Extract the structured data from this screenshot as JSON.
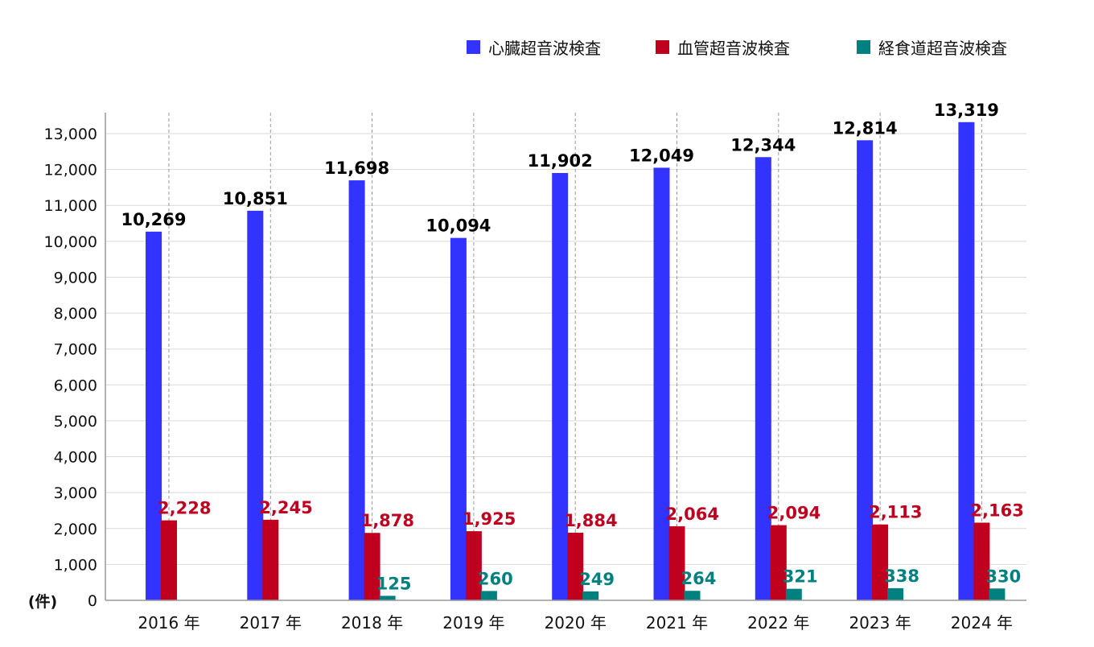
{
  "chart_data": {
    "type": "bar",
    "title": "",
    "xlabel": "",
    "ylabel": "",
    "unit_label": "(件)",
    "categories": [
      "2016 年",
      "2017 年",
      "2018 年",
      "2019 年",
      "2020 年",
      "2021 年",
      "2022 年",
      "2023 年",
      "2024 年"
    ],
    "series": [
      {
        "name": "心臓超音波検査",
        "color": "#3333ff",
        "label_color": "#000000",
        "values": [
          10269,
          10851,
          11698,
          10094,
          11902,
          12049,
          12344,
          12814,
          13319
        ],
        "labels": [
          "10,269",
          "10,851",
          "11,698",
          "10,094",
          "11,902",
          "12,049",
          "12,344",
          "12,814",
          "13,319"
        ]
      },
      {
        "name": "血管超音波検査",
        "color": "#c0001f",
        "label_color": "#c0001f",
        "values": [
          2228,
          2245,
          1878,
          1925,
          1884,
          2064,
          2094,
          2113,
          2163
        ],
        "labels": [
          "2,228",
          "2,245",
          "1,878",
          "1,925",
          "1,884",
          "2,064",
          "2,094",
          "2,113",
          "2,163"
        ]
      },
      {
        "name": "経食道超音波検査",
        "color": "#00807f",
        "label_color": "#00807f",
        "values": [
          null,
          null,
          125,
          260,
          249,
          264,
          321,
          338,
          330
        ],
        "labels": [
          "",
          "",
          "125",
          "260",
          "249",
          "264",
          "321",
          "338",
          "330"
        ]
      }
    ],
    "ylim": [
      0,
      13000
    ],
    "yticks": [
      0,
      1000,
      2000,
      3000,
      4000,
      5000,
      6000,
      7000,
      8000,
      9000,
      10000,
      11000,
      12000,
      13000
    ],
    "ytick_labels": [
      "0",
      "1,000",
      "2,000",
      "3,000",
      "4,000",
      "5,000",
      "6,000",
      "7,000",
      "8,000",
      "9,000",
      "10,000",
      "11,000",
      "12,000",
      "13,000"
    ],
    "grid": true,
    "legend_position": "top-right"
  }
}
